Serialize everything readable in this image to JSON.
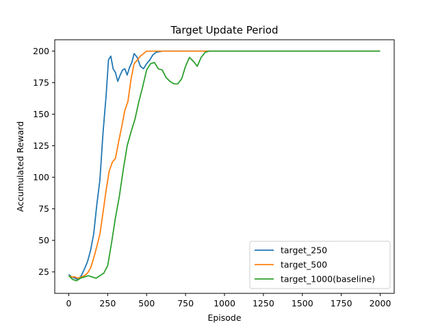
{
  "chart_data": {
    "type": "line",
    "title": "Target Update Period",
    "xlabel": "Episode",
    "ylabel": "Accumulated Reward",
    "xlim": [
      -90,
      2090
    ],
    "ylim": [
      8,
      209
    ],
    "xticks": [
      0,
      250,
      500,
      750,
      1000,
      1250,
      1500,
      1750,
      2000
    ],
    "yticks": [
      25,
      50,
      75,
      100,
      125,
      150,
      175,
      200
    ],
    "grid": false,
    "legend_position": "lower-right",
    "series": [
      {
        "name": "target_250",
        "color": "#1f77b4",
        "x": [
          0,
          20,
          40,
          60,
          80,
          100,
          120,
          140,
          160,
          180,
          200,
          220,
          240,
          255,
          270,
          285,
          300,
          315,
          330,
          345,
          360,
          375,
          390,
          405,
          420,
          440,
          460,
          480,
          500,
          520,
          540,
          560,
          600,
          700,
          800,
          1000,
          1500,
          2000
        ],
        "y": [
          23,
          21,
          20,
          19,
          22,
          27,
          33,
          42,
          55,
          78,
          98,
          135,
          165,
          193,
          196,
          186,
          183,
          176,
          181,
          185,
          186,
          181,
          187,
          191,
          198,
          195,
          188,
          186,
          190,
          193,
          197,
          199,
          200,
          200,
          200,
          200,
          200,
          200
        ]
      },
      {
        "name": "target_500",
        "color": "#ff7f0e",
        "x": [
          0,
          20,
          40,
          60,
          80,
          100,
          120,
          140,
          160,
          180,
          200,
          220,
          240,
          260,
          280,
          300,
          320,
          340,
          360,
          380,
          400,
          420,
          440,
          460,
          480,
          500,
          520,
          540,
          560,
          600,
          700,
          800,
          1000,
          1500,
          2000
        ],
        "y": [
          22,
          21,
          21,
          20,
          21,
          22,
          24,
          28,
          36,
          45,
          55,
          72,
          90,
          105,
          112,
          115,
          128,
          140,
          153,
          160,
          178,
          190,
          193,
          196,
          198,
          200,
          200,
          200,
          200,
          200,
          200,
          200,
          200,
          200,
          200
        ]
      },
      {
        "name": "target_1000(baseline)",
        "color": "#2ca02c",
        "x": [
          0,
          25,
          50,
          75,
          100,
          125,
          150,
          175,
          200,
          225,
          250,
          275,
          300,
          325,
          350,
          375,
          400,
          425,
          450,
          475,
          500,
          525,
          550,
          575,
          600,
          625,
          650,
          675,
          700,
          725,
          750,
          775,
          800,
          825,
          850,
          875,
          900,
          950,
          1000,
          1500,
          2000
        ],
        "y": [
          22,
          19,
          18,
          20,
          21,
          22,
          21,
          20,
          22,
          24,
          30,
          48,
          68,
          85,
          106,
          125,
          136,
          146,
          160,
          172,
          185,
          190,
          191,
          186,
          185,
          179,
          176,
          174,
          174,
          178,
          188,
          195,
          192,
          188,
          195,
          199,
          200,
          200,
          200,
          200,
          200
        ]
      }
    ]
  }
}
